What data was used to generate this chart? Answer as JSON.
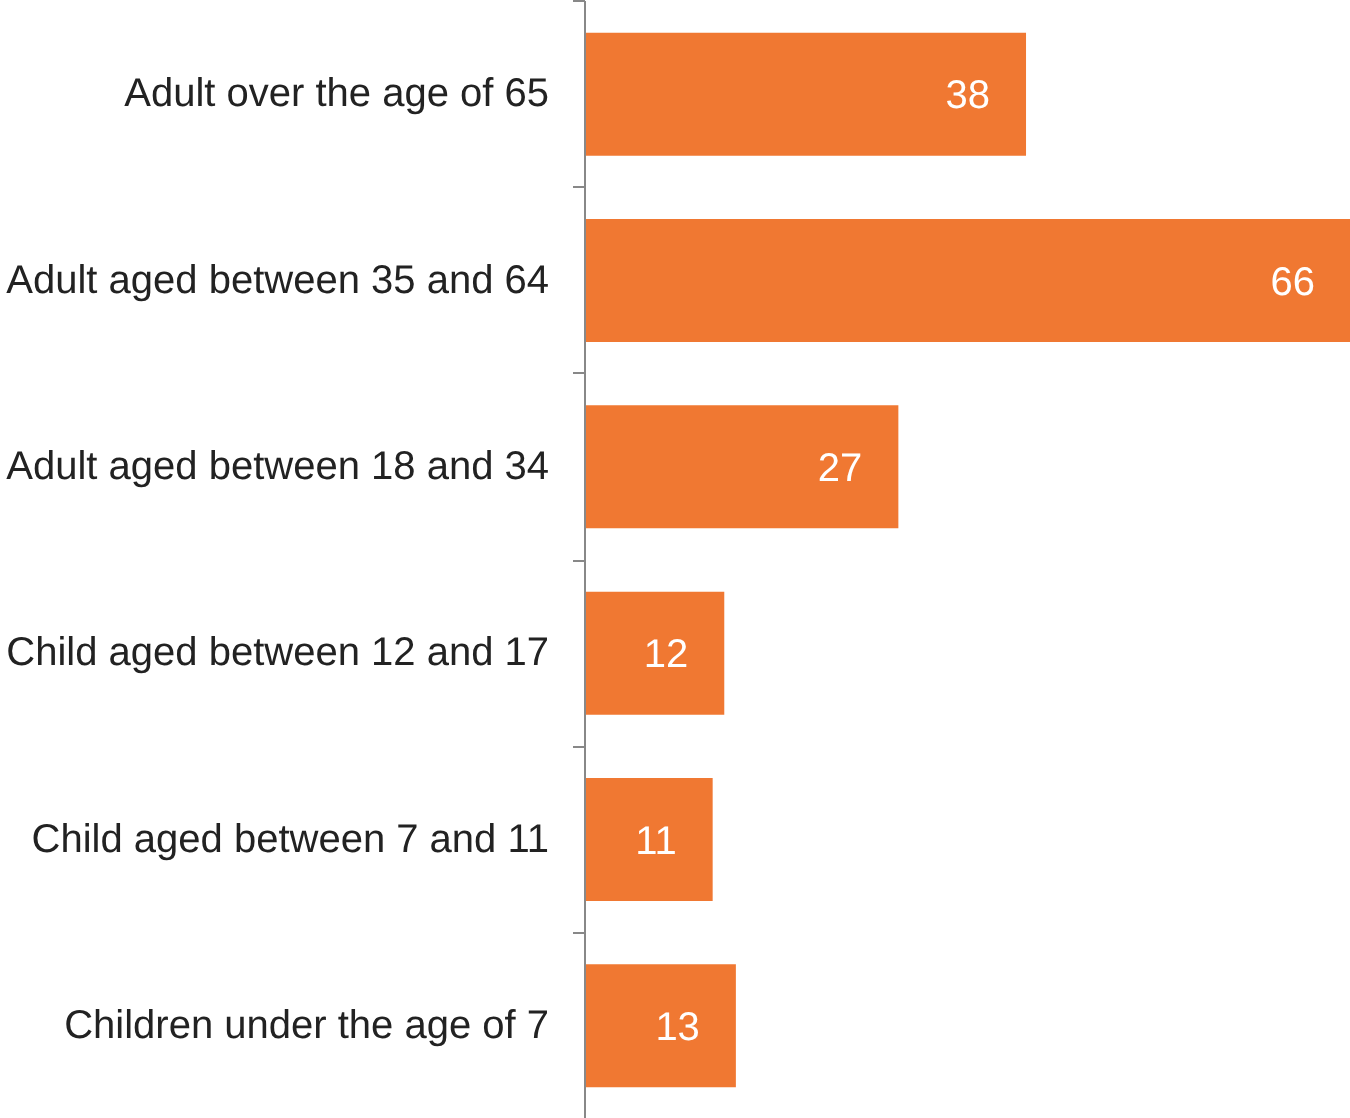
{
  "chart_data": {
    "type": "bar",
    "orientation": "horizontal",
    "categories": [
      "Adult over the age of 65",
      "Adult aged between 35 and 64",
      "Adult aged between 18 and 34",
      "Child aged between 12 and 17",
      "Child aged between 7 and 11",
      "Children under the age of 7"
    ],
    "values": [
      38,
      66,
      27,
      12,
      11,
      13
    ],
    "color": "#f07832",
    "data_labels": true
  }
}
